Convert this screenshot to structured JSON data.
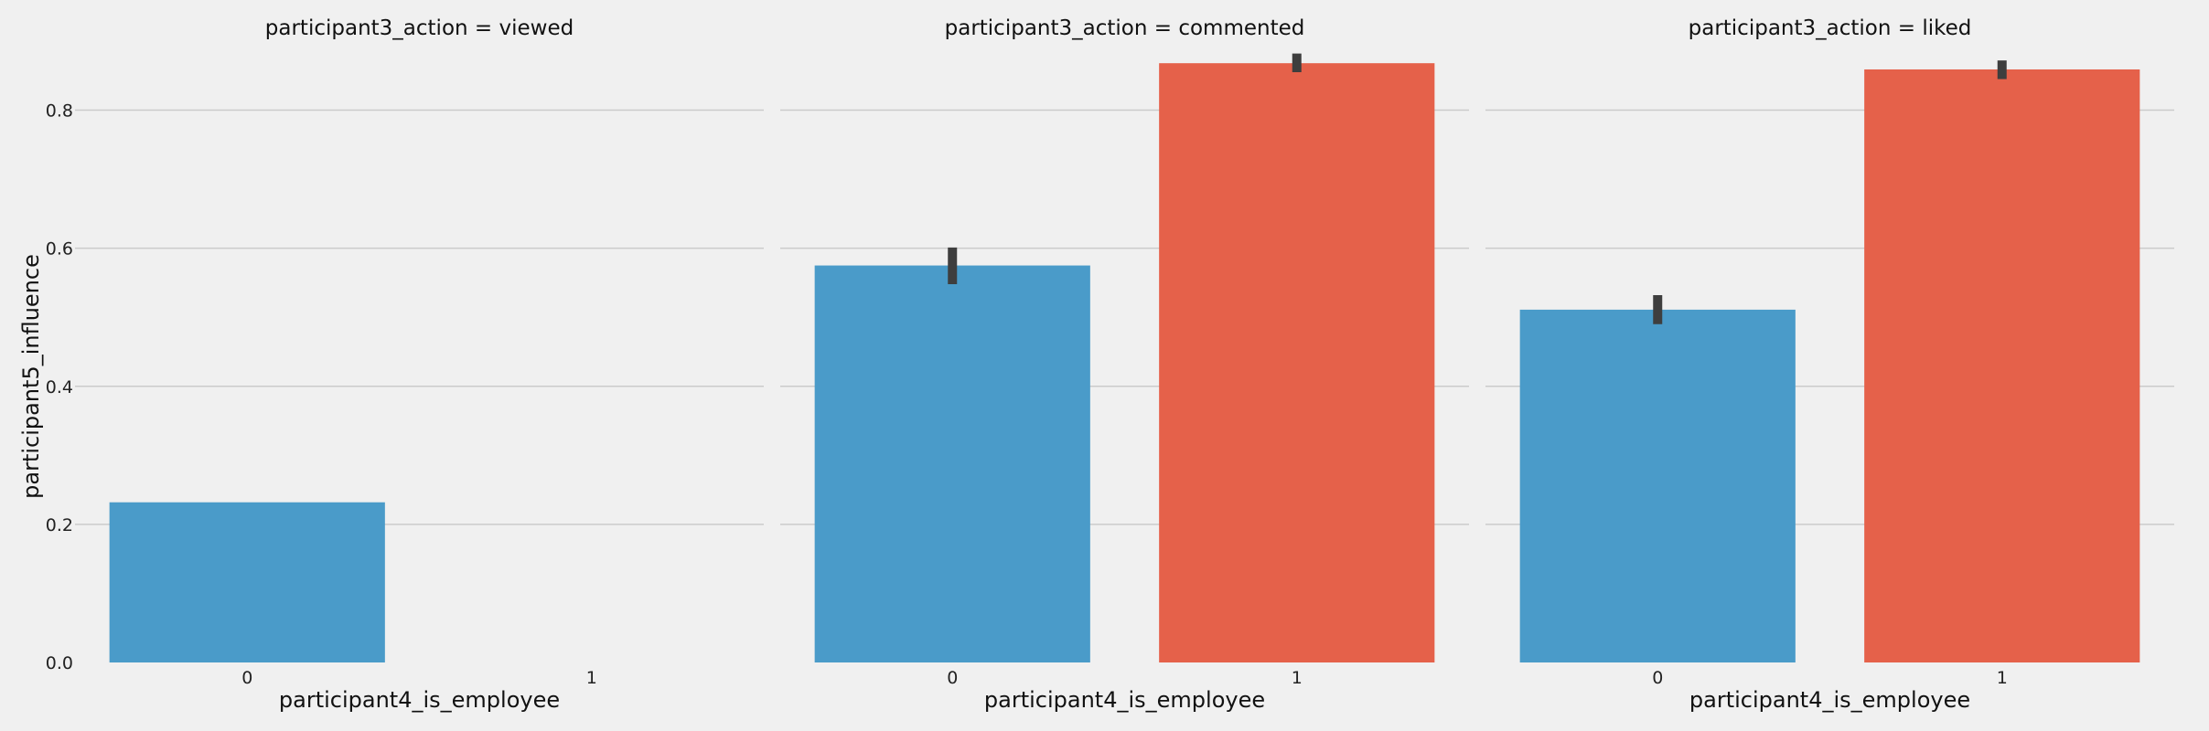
{
  "chart_data": {
    "type": "bar",
    "ylabel": "participant5_influence",
    "ylim": [
      0,
      0.9
    ],
    "yticks": [
      0.0,
      0.2,
      0.4,
      0.6,
      0.8
    ],
    "ytick_labels": [
      "0.0",
      "0.2",
      "0.4",
      "0.6",
      "0.8"
    ],
    "grid": true,
    "colors": {
      "0": "#4a9bc9",
      "1": "#e5614a",
      "errorbar": "#3e3e3e"
    },
    "panels": [
      {
        "title": "participant3_action = viewed",
        "xlabel": "participant4_is_employee",
        "categories": [
          "0",
          "1"
        ],
        "values": [
          0.232,
          null
        ],
        "errors": [
          [
            0.232,
            0.232
          ],
          null
        ]
      },
      {
        "title": "participant3_action = commented",
        "xlabel": "participant4_is_employee",
        "categories": [
          "0",
          "1"
        ],
        "values": [
          0.575,
          0.868
        ],
        "errors": [
          [
            0.548,
            0.601
          ],
          [
            0.855,
            0.882
          ]
        ]
      },
      {
        "title": "participant3_action = liked",
        "xlabel": "participant4_is_employee",
        "categories": [
          "0",
          "1"
        ],
        "values": [
          0.511,
          0.859
        ],
        "errors": [
          [
            0.49,
            0.532
          ],
          [
            0.845,
            0.872
          ]
        ]
      }
    ]
  }
}
